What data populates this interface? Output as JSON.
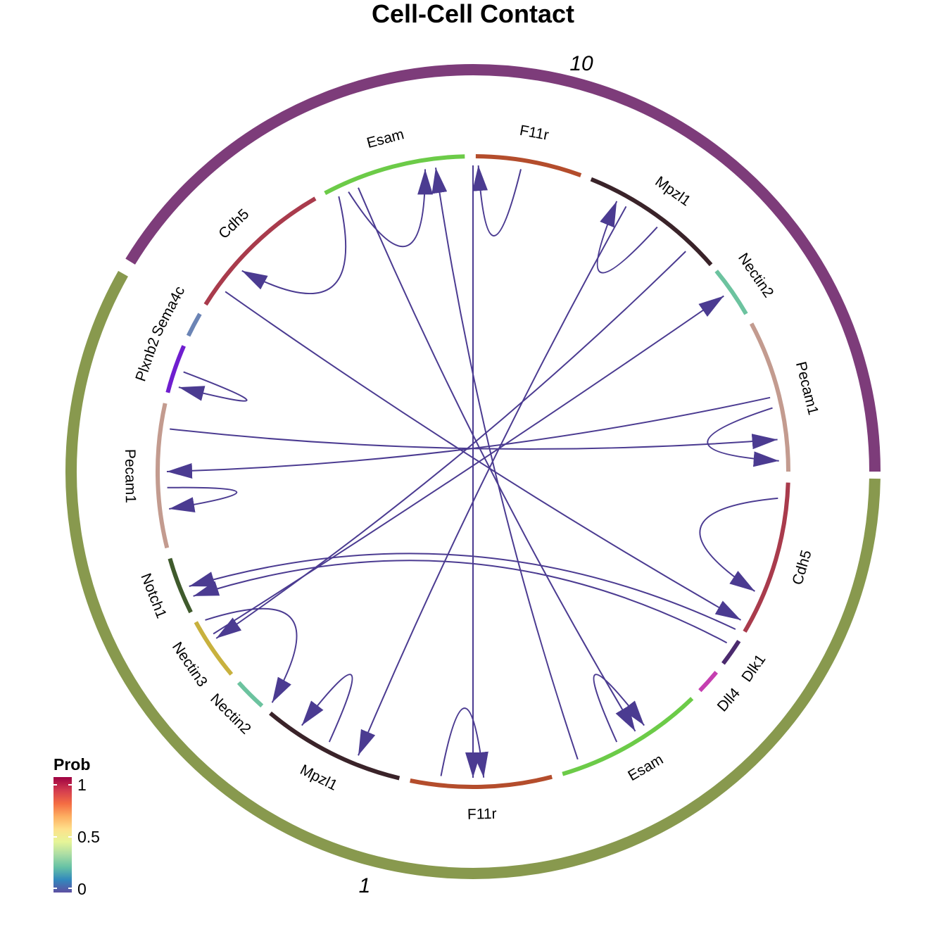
{
  "chart_data": {
    "type": "chord",
    "title": "Cell-Cell Contact",
    "groups": [
      {
        "name": "10",
        "color": "#7D3C7A"
      },
      {
        "name": "1",
        "color": "#88994E"
      }
    ],
    "sectors": [
      {
        "id": "s_pecam1_10",
        "label": "Pecam1",
        "group": "10",
        "color": "#C39B8F"
      },
      {
        "id": "s_nectin2_10",
        "label": "Nectin2",
        "group": "10",
        "color": "#6CC39F"
      },
      {
        "id": "s_mpzl1_10",
        "label": "Mpzl1",
        "group": "10",
        "color": "#3A2329"
      },
      {
        "id": "s_f11r_10",
        "label": "F11r",
        "group": "10",
        "color": "#B44D2C"
      },
      {
        "id": "s_esam_10",
        "label": "Esam",
        "group": "10",
        "color": "#6CCB48"
      },
      {
        "id": "s_cdh5_10",
        "label": "Cdh5",
        "group": "10",
        "color": "#A93B4C"
      },
      {
        "id": "s_sema4c_1",
        "label": "Sema4c",
        "group": "1",
        "color": "#6B84B5"
      },
      {
        "id": "s_plxnb2_1",
        "label": "Plxnb2",
        "group": "1",
        "color": "#6F1ECF"
      },
      {
        "id": "s_pecam1_1",
        "label": "Pecam1",
        "group": "1",
        "color": "#C39B8F"
      },
      {
        "id": "s_notch1_1",
        "label": "Notch1",
        "group": "1",
        "color": "#3F5A2C"
      },
      {
        "id": "s_nectin3_1",
        "label": "Nectin3",
        "group": "1",
        "color": "#C8B13E"
      },
      {
        "id": "s_nectin2_1",
        "label": "Nectin2",
        "group": "1",
        "color": "#6CC39F"
      },
      {
        "id": "s_mpzl1_1",
        "label": "Mpzl1",
        "group": "1",
        "color": "#3A2329"
      },
      {
        "id": "s_f11r_1",
        "label": "F11r",
        "group": "1",
        "color": "#B44D2C"
      },
      {
        "id": "s_esam_1",
        "label": "Esam",
        "group": "1",
        "color": "#6CCB48"
      },
      {
        "id": "s_dll4_1",
        "label": "Dll4",
        "group": "1",
        "color": "#C53FB0"
      },
      {
        "id": "s_dlk1_1",
        "label": "Dlk1",
        "group": "1",
        "color": "#4B2A6E"
      },
      {
        "id": "s_cdh5_1",
        "label": "Cdh5",
        "group": "1",
        "color": "#A93B4C"
      }
    ],
    "links": [
      {
        "source": "Esam (10)",
        "target": "Esam (10)",
        "prob": 0.05
      },
      {
        "source": "Esam (10)",
        "target": "Esam (1)",
        "prob": 0.05
      },
      {
        "source": "Esam (10)",
        "target": "Cdh5 (10)",
        "prob": 0.05
      },
      {
        "source": "F11r (10)",
        "target": "F11r (10)",
        "prob": 0.05
      },
      {
        "source": "F11r (10)",
        "target": "F11r (1)",
        "prob": 0.05
      },
      {
        "source": "Mpzl1 (10)",
        "target": "Mpzl1 (10)",
        "prob": 0.05
      },
      {
        "source": "Mpzl1 (10)",
        "target": "Mpzl1 (1)",
        "prob": 0.05
      },
      {
        "source": "Nectin2 (10)",
        "target": "Nectin3 (1)",
        "prob": 0.05
      },
      {
        "source": "Pecam1 (10)",
        "target": "Pecam1 (10)",
        "prob": 0.05
      },
      {
        "source": "Pecam1 (10)",
        "target": "Pecam1 (1)",
        "prob": 0.05
      },
      {
        "source": "Cdh5 (10)",
        "target": "Cdh5 (1)",
        "prob": 0.05
      },
      {
        "source": "Sema4c (1)",
        "target": "Plxnb2 (1)",
        "prob": 0.05
      },
      {
        "source": "Pecam1 (1)",
        "target": "Pecam1 (1)",
        "prob": 0.05
      },
      {
        "source": "Pecam1 (1)",
        "target": "Pecam1 (10)",
        "prob": 0.05
      },
      {
        "source": "Nectin3 (1)",
        "target": "Nectin2 (10)",
        "prob": 0.05
      },
      {
        "source": "Nectin3 (1)",
        "target": "Nectin2 (1)",
        "prob": 0.05
      },
      {
        "source": "Mpzl1 (1)",
        "target": "Mpzl1 (1)",
        "prob": 0.05
      },
      {
        "source": "F11r (1)",
        "target": "F11r (1)",
        "prob": 0.05
      },
      {
        "source": "Esam (1)",
        "target": "Esam (1)",
        "prob": 0.05
      },
      {
        "source": "Esam (1)",
        "target": "Esam (10)",
        "prob": 0.05
      },
      {
        "source": "Dll4 (1)",
        "target": "Notch1 (1)",
        "prob": 0.05
      },
      {
        "source": "Dlk1 (1)",
        "target": "Notch1 (1)",
        "prob": 0.05
      },
      {
        "source": "Cdh5 (1)",
        "target": "Cdh5 (1)",
        "prob": 0.05
      }
    ],
    "legend": {
      "title": "Prob",
      "ticks": [
        "1",
        "0.5",
        "0"
      ],
      "colors": [
        "#9E0142",
        "#D53E4F",
        "#F46D43",
        "#FDAE61",
        "#FEE08B",
        "#E6F598",
        "#ABDDA4",
        "#66C2A5",
        "#3288BD",
        "#5E4FA2"
      ]
    },
    "link_color": "#4B3B91"
  }
}
